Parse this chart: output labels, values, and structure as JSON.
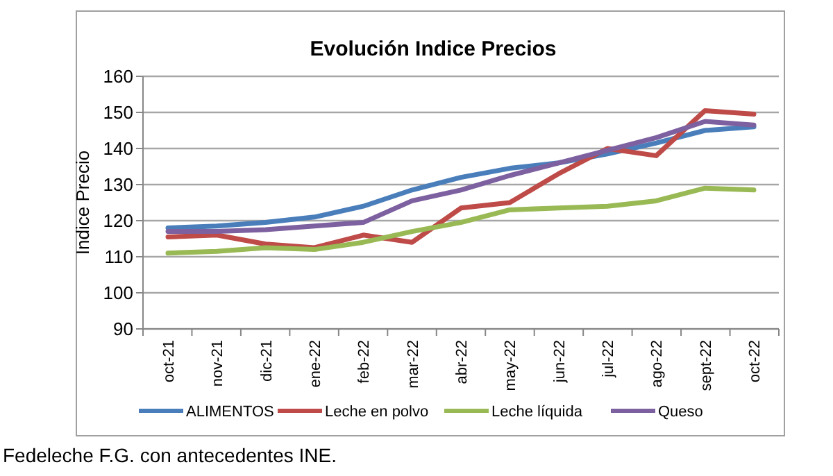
{
  "chart_data": {
    "type": "line",
    "title": "Evolución  Indice Precios",
    "ylabel": "Indice Precio",
    "categories": [
      "oct-21",
      "nov-21",
      "dic-21",
      "ene-22",
      "feb-22",
      "mar-22",
      "abr-22",
      "may-22",
      "jun-22",
      "jul-22",
      "ago-22",
      "sept-22",
      "oct-22"
    ],
    "series": [
      {
        "name": "ALIMENTOS",
        "color": "#4a7ebb",
        "values": [
          118,
          118.5,
          119.5,
          121,
          124,
          128.5,
          132,
          134.5,
          136,
          138.5,
          141.5,
          145,
          146
        ]
      },
      {
        "name": "Leche en polvo",
        "color": "#be4b48",
        "values": [
          115.5,
          116,
          113.5,
          112.5,
          116,
          114,
          123.5,
          125,
          133,
          140,
          138,
          150.5,
          149.5
        ]
      },
      {
        "name": "Leche líquida",
        "color": "#98b954",
        "values": [
          111,
          111.5,
          112.5,
          112,
          114,
          117,
          119.5,
          123,
          123.5,
          124,
          125.5,
          129,
          128.5
        ]
      },
      {
        "name": "Queso",
        "color": "#7d60a0",
        "values": [
          117,
          117,
          117.5,
          118.5,
          119.5,
          125.5,
          128.5,
          132.5,
          136,
          139.5,
          143,
          147.5,
          146.5
        ]
      }
    ],
    "ylim": [
      90,
      160
    ],
    "yticks": [
      90,
      100,
      110,
      120,
      130,
      140,
      150,
      160
    ],
    "grid": "y",
    "legend": "bottom",
    "marker": "none",
    "line_style": "solid",
    "annotations": [
      "Fedeleche F.G. con antecedentes INE."
    ]
  }
}
